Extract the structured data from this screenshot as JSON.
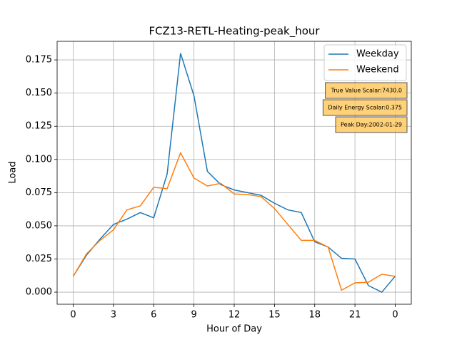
{
  "chart_data": {
    "type": "line",
    "title": "FCZ13-RETL-Heating-peak_hour",
    "x_label": "Hour of Day",
    "y_label": "Load",
    "x": [
      0,
      1,
      2,
      3,
      4,
      5,
      6,
      7,
      8,
      9,
      10,
      11,
      12,
      13,
      14,
      15,
      16,
      17,
      18,
      19,
      20,
      21,
      22,
      23,
      24
    ],
    "series": [
      {
        "name": "Weekday",
        "color": "#1f77b4",
        "values": [
          0.012,
          0.028,
          0.04,
          0.051,
          0.055,
          0.06,
          0.056,
          0.089,
          0.18,
          0.148,
          0.091,
          0.081,
          0.077,
          0.075,
          0.073,
          0.067,
          0.062,
          0.06,
          0.038,
          0.034,
          0.0255,
          0.025,
          0.005,
          0.0,
          0.012
        ]
      },
      {
        "name": "Weekend",
        "color": "#ff7f0e",
        "values": [
          0.012,
          0.029,
          0.039,
          0.047,
          0.062,
          0.065,
          0.079,
          0.078,
          0.105,
          0.086,
          0.08,
          0.082,
          0.074,
          0.0735,
          0.072,
          0.063,
          0.051,
          0.039,
          0.039,
          0.034,
          0.0015,
          0.007,
          0.0075,
          0.0135,
          0.012
        ]
      }
    ],
    "xlim": [
      -1.2,
      25.2
    ],
    "xticks": [
      0,
      3,
      6,
      9,
      12,
      15,
      18,
      21,
      {
        "value": 24,
        "label": "0"
      }
    ],
    "ylim": [
      -0.0091,
      0.189
    ],
    "yticks": [
      {
        "value": 0,
        "label": "0.000"
      },
      {
        "value": 0.025,
        "label": "0.025"
      },
      {
        "value": 0.05,
        "label": "0.050"
      },
      {
        "value": 0.075,
        "label": "0.075"
      },
      {
        "value": 0.1,
        "label": "0.100"
      },
      {
        "value": 0.125,
        "label": "0.125"
      },
      {
        "value": 0.15,
        "label": "0.150"
      },
      {
        "value": 0.175,
        "label": "0.175"
      }
    ],
    "grid": true,
    "legend": "upper right",
    "annotations": [
      "True Value Scalar:7430.0",
      "Daily Energy Scalar:0.375",
      "Peak Day:2002-01-29"
    ]
  }
}
